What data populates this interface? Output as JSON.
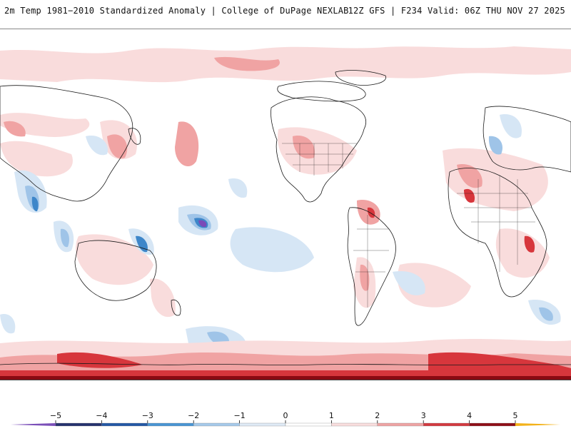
{
  "header": {
    "title": "2m Temp 1981−2010 Standardized Anomaly | College of DuPage NEXLAB",
    "run_info": "12Z GFS | F234 Valid: 06Z THU NOV 27 2025"
  },
  "colors": {
    "ocean_bg": "#ffffff",
    "land_outline": "#1a1a1a",
    "light_red": "#f9dcdc",
    "mid_red": "#f0a3a3",
    "red": "#d7363c",
    "dark_red": "#8b0a12",
    "light_blue": "#d6e6f5",
    "mid_blue": "#9fc4e8",
    "blue": "#3d86c9",
    "navy": "#1f3e73",
    "purple": "#7a4ab8"
  },
  "colorbar": {
    "labels": [
      "−5",
      "−4",
      "−3",
      "−2",
      "−1",
      "0",
      "1",
      "2",
      "3",
      "4",
      "5"
    ],
    "segments": [
      {
        "from": -5,
        "to": -4,
        "color": "#26326e"
      },
      {
        "from": -4,
        "to": -3,
        "color": "#2458a5"
      },
      {
        "from": -3,
        "to": -2,
        "color": "#4a95d3"
      },
      {
        "from": -2,
        "to": -1,
        "color": "#a6c9ea"
      },
      {
        "from": -1,
        "to": 0,
        "color": "#dfeaf6"
      },
      {
        "from": 0,
        "to": 1,
        "color": "#ffffff"
      },
      {
        "from": 1,
        "to": 2,
        "color": "#f9dede"
      },
      {
        "from": 2,
        "to": 3,
        "color": "#eea4a4"
      },
      {
        "from": 3,
        "to": 4,
        "color": "#d23a40"
      },
      {
        "from": 4,
        "to": 5,
        "color": "#8e0f18"
      }
    ],
    "low_cap_color": "#7b4fb8",
    "high_cap_color": "#f3b21a"
  }
}
